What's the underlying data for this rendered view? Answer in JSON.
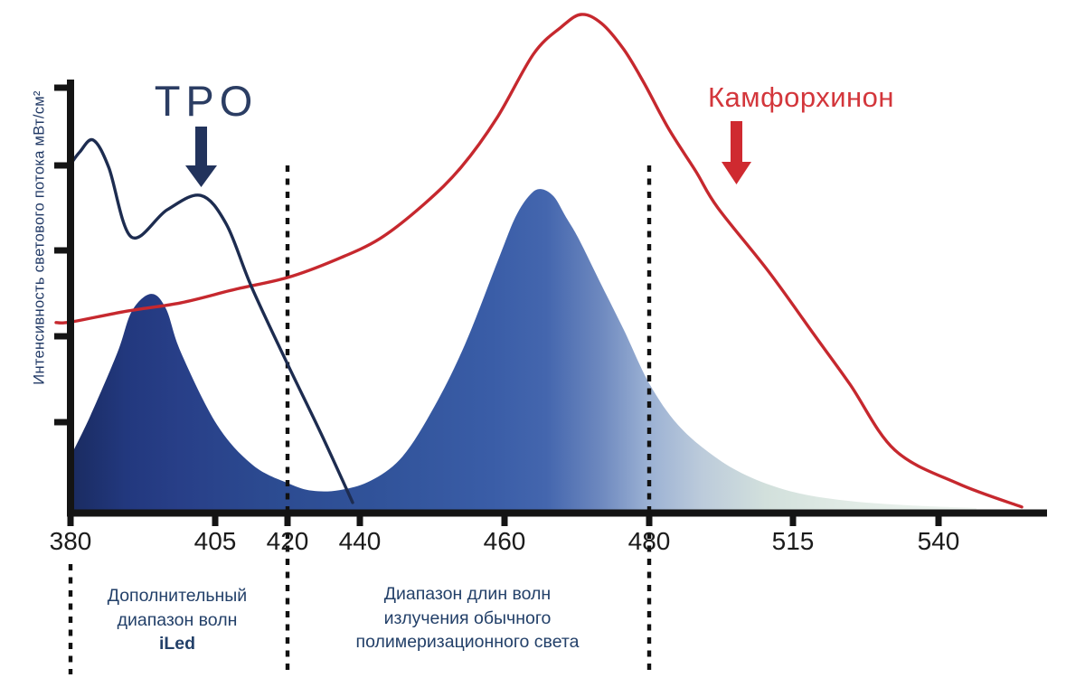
{
  "labels": {
    "tpo": "TPO",
    "camphorquinone": "Камфорхинон"
  },
  "y_axis": {
    "title": "Интенсивность светового потока мВт/см²",
    "ticks_labeled": false,
    "n_ticks": 5
  },
  "annotations": {
    "iled": {
      "line1": "Дополнительный",
      "line2": "диапазон волн",
      "line3": "iLed"
    },
    "conventional": {
      "line1": "Диапазон длин волн",
      "line2": "излучения обычного",
      "line3": "полимеризационного света"
    }
  },
  "colors": {
    "axis": "#141414",
    "dotted_line": "#111111",
    "tpo_curve": "#1d2c50",
    "tpo_arrow": "#22335c",
    "red_curve": "#c6282e",
    "red_arrow": "#cf2a30",
    "led_gradient": [
      [
        0.0,
        "#1a2b60"
      ],
      [
        0.06,
        "#22387e"
      ],
      [
        0.12,
        "#283f88"
      ],
      [
        0.22,
        "#2c4b91"
      ],
      [
        0.34,
        "#31539a"
      ],
      [
        0.46,
        "#3a5da7"
      ],
      [
        0.52,
        "#4466ae"
      ],
      [
        0.58,
        "#6e89bf"
      ],
      [
        0.63,
        "#9ab0d3"
      ],
      [
        0.69,
        "#bccbdb"
      ],
      [
        0.76,
        "#d2e0dc"
      ],
      [
        0.84,
        "#dfeae4"
      ],
      [
        0.93,
        "#e9f1ec"
      ],
      [
        1.0,
        "#f3f7f3"
      ]
    ]
  },
  "chart_data": {
    "type": "area",
    "title": "",
    "xlabel": "",
    "ylabel": "Интенсивность светового потока мВт/см²",
    "x_ticks": [
      380,
      405,
      420,
      440,
      460,
      480,
      515,
      540
    ],
    "guide_lines_x": [
      420,
      480
    ],
    "below_axis_guide_x": 380,
    "ranges": {
      "iled_additional_wavelength_range": [
        380,
        420
      ],
      "conventional_polymerization_light_range": [
        420,
        480
      ]
    },
    "y_scale": "relative_intensity_0_to_1",
    "series": [
      {
        "id": "led_emission",
        "label": "iLed",
        "type": "area",
        "points": [
          [
            380,
            0.106
          ],
          [
            383.4,
            0.188
          ],
          [
            388.1,
            0.316
          ],
          [
            390.6,
            0.4
          ],
          [
            393.9,
            0.435
          ],
          [
            396.5,
            0.405
          ],
          [
            399.1,
            0.316
          ],
          [
            405.4,
            0.17
          ],
          [
            412.9,
            0.088
          ],
          [
            420.5,
            0.051
          ],
          [
            426.8,
            0.037
          ],
          [
            434.3,
            0.038
          ],
          [
            441.5,
            0.057
          ],
          [
            445.9,
            0.106
          ],
          [
            450.3,
            0.207
          ],
          [
            454.6,
            0.335
          ],
          [
            459,
            0.499
          ],
          [
            461.5,
            0.59
          ],
          [
            463.5,
            0.635
          ],
          [
            465,
            0.647
          ],
          [
            466.8,
            0.632
          ],
          [
            468.5,
            0.59
          ],
          [
            470.3,
            0.545
          ],
          [
            473.4,
            0.453
          ],
          [
            476.5,
            0.362
          ],
          [
            480,
            0.254
          ],
          [
            487,
            0.17
          ],
          [
            495.9,
            0.106
          ],
          [
            504.7,
            0.064
          ],
          [
            515.5,
            0.033
          ],
          [
            524.8,
            0.016
          ],
          [
            535.6,
            0.007
          ],
          [
            546.5,
            0.002
          ]
        ]
      },
      {
        "id": "tpo_absorption",
        "label": "TPO",
        "type": "line",
        "points": [
          [
            380,
            0.697
          ],
          [
            381.6,
            0.722
          ],
          [
            383.9,
            0.746
          ],
          [
            386.6,
            0.691
          ],
          [
            390.5,
            0.55
          ],
          [
            396.7,
            0.605
          ],
          [
            402.5,
            0.634
          ],
          [
            407.3,
            0.576
          ],
          [
            412.5,
            0.45
          ],
          [
            420,
            0.293
          ],
          [
            429.3,
            0.152
          ],
          [
            438,
            0.013
          ]
        ]
      },
      {
        "id": "camphorquinone_absorption",
        "label": "Камфорхинон",
        "type": "line",
        "points": [
          [
            377.5,
            0.377
          ],
          [
            380,
            0.378
          ],
          [
            389.7,
            0.4
          ],
          [
            399.1,
            0.417
          ],
          [
            409.1,
            0.444
          ],
          [
            420,
            0.468
          ],
          [
            433,
            0.503
          ],
          [
            442.8,
            0.547
          ],
          [
            449,
            0.618
          ],
          [
            454,
            0.691
          ],
          [
            459,
            0.792
          ],
          [
            464,
            0.92
          ],
          [
            467.8,
            0.974
          ],
          [
            470.6,
            1.0
          ],
          [
            473.4,
            0.982
          ],
          [
            476.5,
            0.929
          ],
          [
            479.3,
            0.861
          ],
          [
            484.8,
            0.768
          ],
          [
            491.4,
            0.682
          ],
          [
            496.7,
            0.609
          ],
          [
            509,
            0.481
          ],
          [
            518.6,
            0.353
          ],
          [
            524.8,
            0.252
          ],
          [
            532.5,
            0.119
          ],
          [
            543.4,
            0.051
          ],
          [
            554.3,
            0.004
          ]
        ]
      }
    ]
  }
}
